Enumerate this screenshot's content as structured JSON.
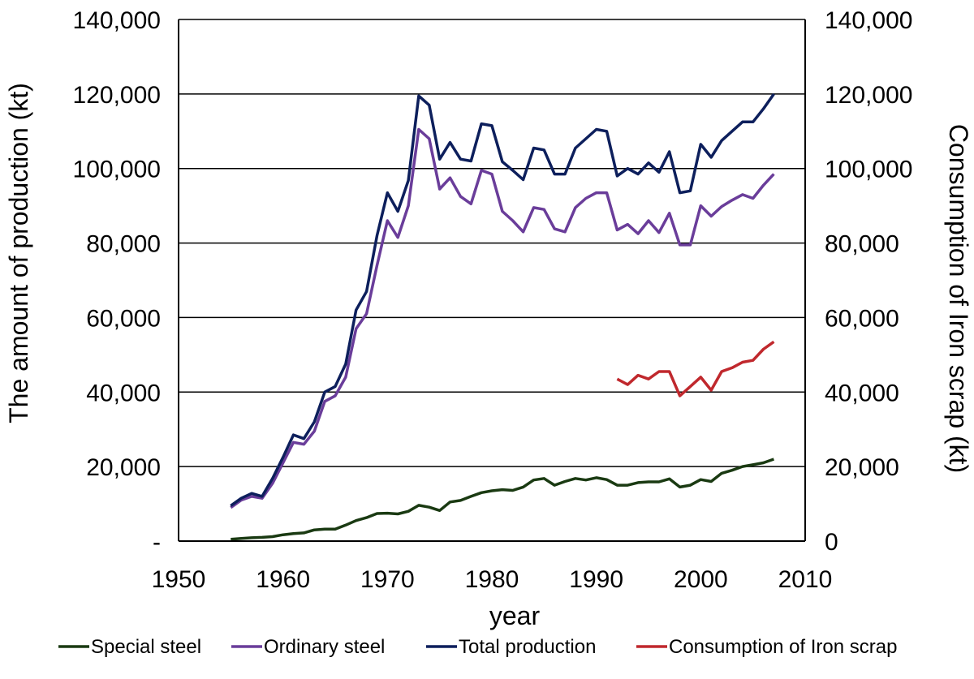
{
  "chart_data": {
    "type": "line",
    "title": "",
    "xlabel": "year",
    "ylabel": "The amount of production (kt)",
    "y2label": "Consumption of Iron scrap (kt)",
    "xlim": [
      1950,
      2010
    ],
    "ylim": [
      0,
      140000
    ],
    "y2lim": [
      0,
      140000
    ],
    "grid": "horizontal",
    "legend_position": "bottom",
    "x_ticks": [
      "1950",
      "1960",
      "1970",
      "1980",
      "1990",
      "2000",
      "2010"
    ],
    "y_ticks_left": [
      "-",
      "20,000",
      "40,000",
      "60,000",
      "80,000",
      "100,000",
      "120,000",
      "140,000"
    ],
    "y_ticks_right": [
      "0",
      "20,000",
      "40,000",
      "60,000",
      "80,000",
      "100,000",
      "120,000",
      "140,000"
    ],
    "series": [
      {
        "name": "Special steel",
        "color": "#1a3a12",
        "x": [
          1955,
          1956,
          1957,
          1958,
          1959,
          1960,
          1961,
          1962,
          1963,
          1964,
          1965,
          1966,
          1967,
          1968,
          1969,
          1970,
          1971,
          1972,
          1973,
          1974,
          1975,
          1976,
          1977,
          1978,
          1979,
          1980,
          1981,
          1982,
          1983,
          1984,
          1985,
          1986,
          1987,
          1988,
          1989,
          1990,
          1991,
          1992,
          1993,
          1994,
          1995,
          1996,
          1997,
          1998,
          1999,
          2000,
          2001,
          2002,
          2003,
          2004,
          2005,
          2006,
          2007
        ],
        "values": [
          500,
          700,
          900,
          1000,
          1200,
          1700,
          2000,
          2200,
          3000,
          3200,
          3200,
          4300,
          5500,
          6300,
          7400,
          7500,
          7300,
          8000,
          9600,
          9100,
          8200,
          10500,
          10900,
          12000,
          13000,
          13500,
          13800,
          13600,
          14500,
          16400,
          16800,
          15000,
          16000,
          16800,
          16400,
          17000,
          16500,
          15000,
          15000,
          15700,
          15900,
          15900,
          16700,
          14500,
          15000,
          16500,
          16000,
          18200,
          19000,
          20000,
          20500,
          21000,
          22000
        ]
      },
      {
        "name": "Ordinary steel",
        "color": "#6a3d9a",
        "x": [
          1955,
          1956,
          1957,
          1958,
          1959,
          1960,
          1961,
          1962,
          1963,
          1964,
          1965,
          1966,
          1967,
          1968,
          1969,
          1970,
          1971,
          1972,
          1973,
          1974,
          1975,
          1976,
          1977,
          1978,
          1979,
          1980,
          1981,
          1982,
          1983,
          1984,
          1985,
          1986,
          1987,
          1988,
          1989,
          1990,
          1991,
          1992,
          1993,
          1994,
          1995,
          1996,
          1997,
          1998,
          1999,
          2000,
          2001,
          2002,
          2003,
          2004,
          2005,
          2006,
          2007
        ],
        "values": [
          9000,
          11000,
          12000,
          11500,
          15500,
          21000,
          26500,
          26000,
          29500,
          37500,
          39000,
          44000,
          57000,
          61000,
          74000,
          86000,
          81500,
          90000,
          110500,
          108000,
          94500,
          97500,
          92500,
          90500,
          99500,
          98500,
          88500,
          86000,
          83000,
          89500,
          89000,
          83800,
          83000,
          89500,
          92000,
          93500,
          93500,
          83500,
          85000,
          82500,
          86000,
          82800,
          88000,
          79500,
          79500,
          90000,
          87200,
          89800,
          91500,
          93000,
          92000,
          95500,
          98500
        ]
      },
      {
        "name": "Total production",
        "color": "#0d1f5c",
        "x": [
          1955,
          1956,
          1957,
          1958,
          1959,
          1960,
          1961,
          1962,
          1963,
          1964,
          1965,
          1966,
          1967,
          1968,
          1969,
          1970,
          1971,
          1972,
          1973,
          1974,
          1975,
          1976,
          1977,
          1978,
          1979,
          1980,
          1981,
          1982,
          1983,
          1984,
          1985,
          1986,
          1987,
          1988,
          1989,
          1990,
          1991,
          1992,
          1993,
          1994,
          1995,
          1996,
          1997,
          1998,
          1999,
          2000,
          2001,
          2002,
          2003,
          2004,
          2005,
          2006,
          2007
        ],
        "values": [
          9500,
          11500,
          12800,
          12000,
          16800,
          22500,
          28500,
          27500,
          32000,
          40000,
          41500,
          47500,
          62000,
          67000,
          82000,
          93500,
          88500,
          96800,
          119500,
          117000,
          102500,
          107000,
          102500,
          102000,
          112000,
          111500,
          101800,
          99500,
          97000,
          105500,
          105000,
          98500,
          98500,
          105500,
          108000,
          110500,
          110000,
          98000,
          100000,
          98500,
          101500,
          99000,
          104500,
          93500,
          94000,
          106500,
          103000,
          107500,
          110000,
          112500,
          112500,
          116000,
          120000
        ]
      },
      {
        "name": "Consumption of Iron scrap",
        "color": "#c0282d",
        "axis": "right",
        "x": [
          1992,
          1993,
          1994,
          1995,
          1996,
          1997,
          1998,
          1999,
          2000,
          2001,
          2002,
          2003,
          2004,
          2005,
          2006,
          2007
        ],
        "values": [
          43500,
          42000,
          44500,
          43500,
          45500,
          45500,
          39000,
          41500,
          44000,
          40500,
          45500,
          46500,
          48000,
          48500,
          51500,
          53500
        ]
      }
    ]
  }
}
